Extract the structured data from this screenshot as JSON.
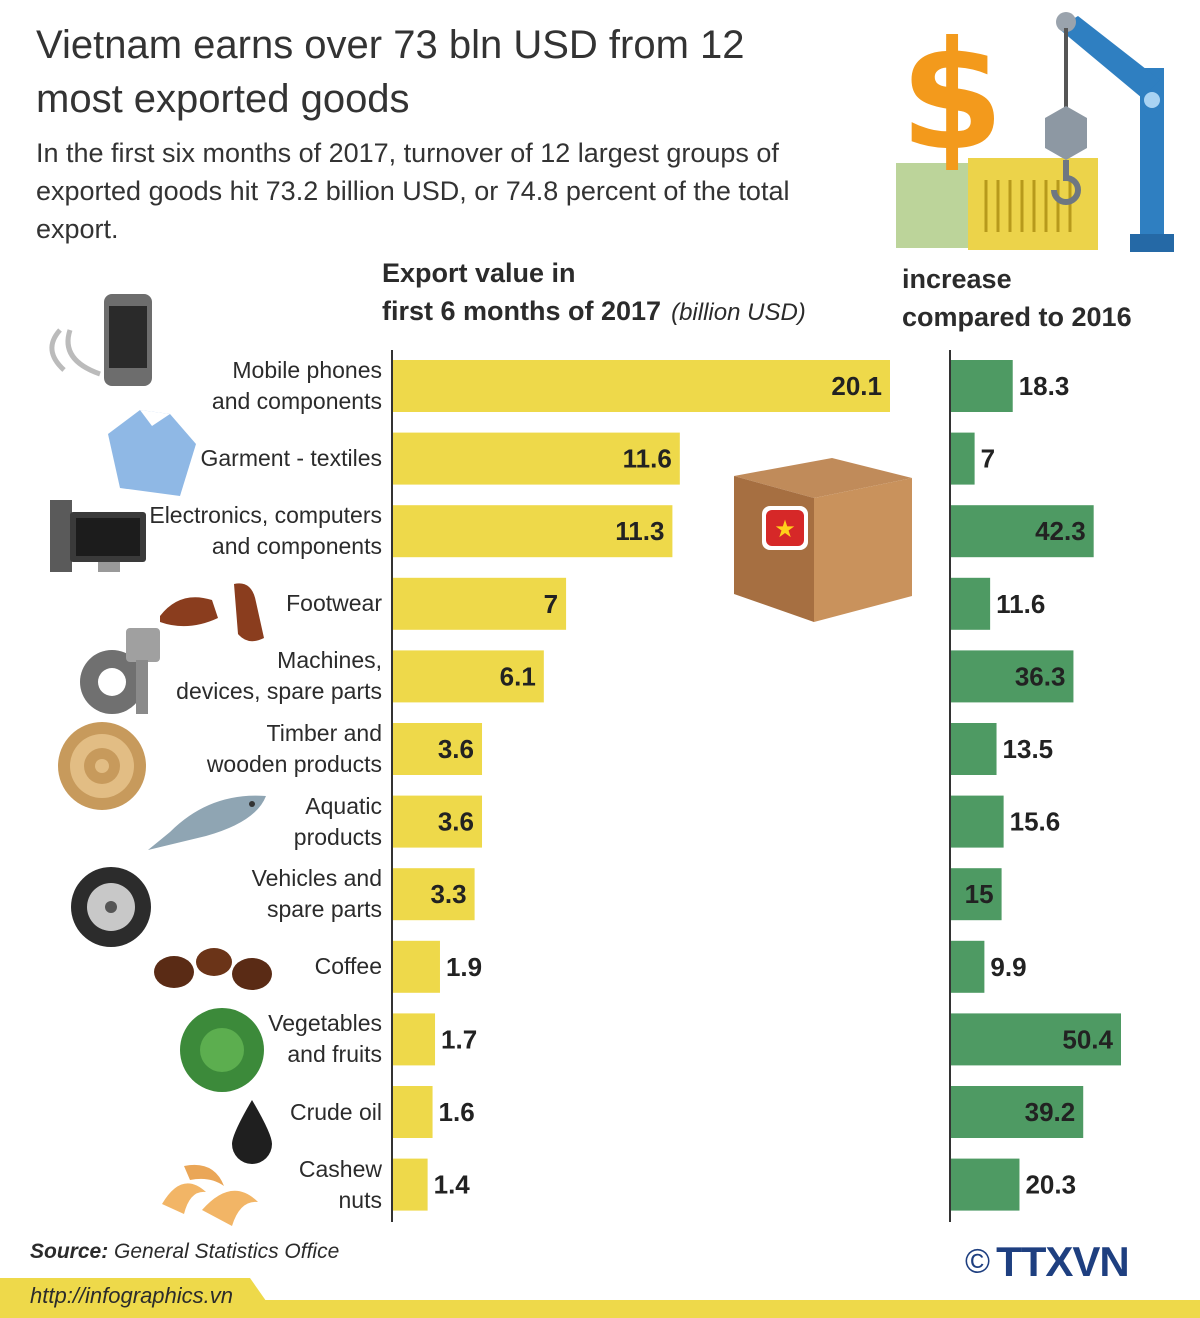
{
  "title": "Vietnam earns over 73 bln USD from 12 most exported goods",
  "subtitle": "In the first six months of 2017, turnover of 12 largest groups of exported goods hit 73.2 billion USD, or 74.8 percent of the total export.",
  "export_header": {
    "line1": "Export value in",
    "line2": "first 6 months of 2017",
    "unit": "(billion USD)"
  },
  "increase_header": {
    "line1": "increase",
    "line2": "compared to 2016"
  },
  "source_label": "Source:",
  "source": "General Statistics Office",
  "url": "http://infographics.vn",
  "logo": {
    "copyright": "©",
    "brand": "TTXVN"
  },
  "colors": {
    "export_bar": "#eed94a",
    "increase_bar": "#4e9a63",
    "axis": "#333333",
    "footer": "#eed94a"
  },
  "chart_data": [
    {
      "type": "bar",
      "orientation": "horizontal",
      "title": "Export value in first 6 months of 2017 (billion USD)",
      "categories": [
        "Mobile phones and components",
        "Garment - textiles",
        "Electronics, computers and components",
        "Footwear",
        "Machines, devices, spare parts",
        "Timber and wooden products",
        "Aquatic products",
        "Vehicles and spare parts",
        "Coffee",
        "Vegetables and fruits",
        "Crude oil",
        "Cashew nuts"
      ],
      "values": [
        20.1,
        11.6,
        11.3,
        7,
        6.1,
        3.6,
        3.6,
        3.3,
        1.9,
        1.7,
        1.6,
        1.4
      ],
      "value_labels": [
        "20.1",
        "11.6",
        "11.3",
        "7",
        "6.1",
        "3.6",
        "3.6",
        "3.3",
        "1.9",
        "1.7",
        "1.6",
        "1.4"
      ],
      "xlim": [
        0,
        20.1
      ],
      "grid": false
    },
    {
      "type": "bar",
      "orientation": "horizontal",
      "title": "increase compared to 2016",
      "categories": [
        "Mobile phones and components",
        "Garment - textiles",
        "Electronics, computers and components",
        "Footwear",
        "Machines, devices, spare parts",
        "Timber and wooden products",
        "Aquatic products",
        "Vehicles and spare parts",
        "Coffee",
        "Vegetables and fruits",
        "Crude oil",
        "Cashew nuts"
      ],
      "values": [
        18.3,
        7,
        42.3,
        11.6,
        36.3,
        13.5,
        15.6,
        15,
        9.9,
        50.4,
        39.2,
        20.3
      ],
      "value_labels": [
        "18.3",
        "7",
        "42.3",
        "11.6",
        "36.3",
        "13.5",
        "15.6",
        "15",
        "9.9",
        "50.4",
        "39.2",
        "20.3"
      ],
      "xlim": [
        0,
        50.4
      ],
      "grid": false
    }
  ],
  "category_labels": [
    [
      "Mobile phones",
      "and components"
    ],
    [
      "Garment - textiles"
    ],
    [
      "Electronics, computers",
      "and components"
    ],
    [
      "Footwear"
    ],
    [
      "Machines,",
      "devices, spare parts"
    ],
    [
      "Timber and",
      "wooden products"
    ],
    [
      "Aquatic",
      "products"
    ],
    [
      "Vehicles and",
      "spare parts"
    ],
    [
      "Coffee"
    ],
    [
      "Vegetables",
      "and fruits"
    ],
    [
      "Crude oil"
    ],
    [
      "Cashew",
      "nuts"
    ]
  ],
  "icons": [
    "mobile-phone-icon",
    "shirt-icon",
    "computer-icon",
    "shoe-icon",
    "gear-piston-icon",
    "wood-log-icon",
    "fish-icon",
    "tire-icon",
    "coffee-beans-icon",
    "cabbage-icon",
    "oil-drop-icon",
    "cashew-icon",
    "dollar-crane-icon",
    "cardboard-box-icon"
  ]
}
